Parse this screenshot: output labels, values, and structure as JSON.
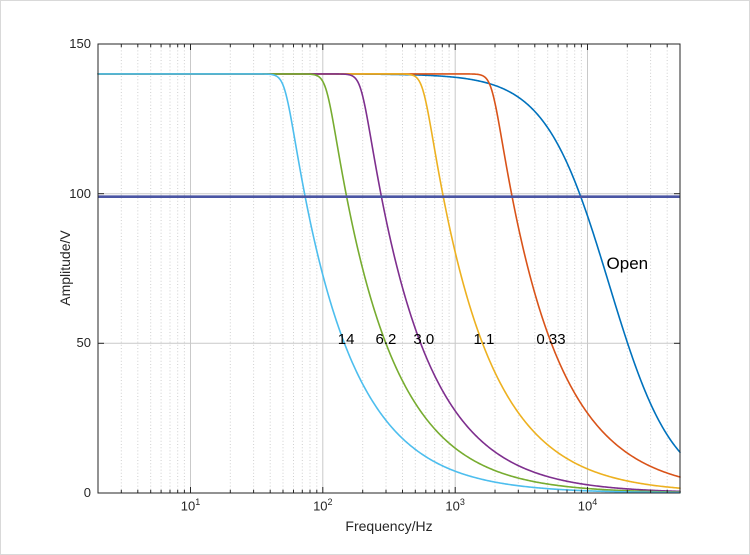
{
  "figure": {
    "background": "#ffffff",
    "axis_color": "#262626",
    "grid_major_color": "#c9c9c9",
    "grid_minor_color": "#cfcfcf"
  },
  "chart_data": {
    "type": "line",
    "title": "",
    "xlabel": "Frequency/Hz",
    "ylabel": "Amplitude/V",
    "x_scale": "log",
    "xlim": [
      2,
      50000
    ],
    "ylim": [
      0,
      150
    ],
    "grid": true,
    "minor_grid": true,
    "legend_position": "none-inline-curve-labels",
    "x_ticks": [
      {
        "base": "10",
        "exp": "1",
        "value": 10
      },
      {
        "base": "10",
        "exp": "2",
        "value": 100
      },
      {
        "base": "10",
        "exp": "3",
        "value": 1000
      },
      {
        "base": "10",
        "exp": "4",
        "value": 10000
      }
    ],
    "y_ticks": [
      {
        "label": "0",
        "value": 0
      },
      {
        "label": "50",
        "value": 50
      },
      {
        "label": "100",
        "value": 100
      },
      {
        "label": "150",
        "value": 150
      }
    ],
    "plateau_amplitude_v": 140,
    "reference_line": {
      "value_v": 99,
      "color": "#4a55a3"
    },
    "sample_x_hz": [
      10,
      100,
      1000,
      10000,
      50000
    ],
    "series": [
      {
        "label": "Open",
        "color": "#0072BD",
        "model": "amplifier_bandwidth",
        "f3db_hz": 14500,
        "rolloff_exponent": 1.8,
        "values_v": [
          140,
          140,
          139.5,
          92.6,
          13.6
        ],
        "label_pos": {
          "f_hz": 20000,
          "amplitude_v": 77
        }
      },
      {
        "label": "0.33",
        "color": "#D95319",
        "model": "capacitor_limited",
        "corner_hz": 1905,
        "values_v": [
          140,
          140,
          140,
          26.7,
          5.3
        ],
        "label_pos": {
          "f_hz": 5300,
          "amplitude_v": 51
        }
      },
      {
        "label": "1.1",
        "color": "#EDB120",
        "model": "capacitor_limited",
        "corner_hz": 575,
        "values_v": [
          140,
          140,
          80.5,
          8.1,
          1.6
        ],
        "label_pos": {
          "f_hz": 1650,
          "amplitude_v": 51
        }
      },
      {
        "label": "3.0",
        "color": "#7E2F8E",
        "model": "capacitor_limited",
        "corner_hz": 196,
        "values_v": [
          140,
          140,
          27.4,
          2.7,
          0.55
        ],
        "label_pos": {
          "f_hz": 580,
          "amplitude_v": 51
        }
      },
      {
        "label": "6.2",
        "color": "#77AC30",
        "model": "capacitor_limited",
        "corner_hz": 107,
        "values_v": [
          140,
          140,
          15.0,
          1.5,
          0.3
        ],
        "label_pos": {
          "f_hz": 300,
          "amplitude_v": 51
        }
      },
      {
        "label": "14",
        "color": "#4DBEEE",
        "model": "capacitor_limited",
        "corner_hz": 52,
        "values_v": [
          140,
          72.8,
          7.3,
          0.73,
          0.15
        ],
        "label_pos": {
          "f_hz": 150,
          "amplitude_v": 51
        }
      }
    ]
  }
}
